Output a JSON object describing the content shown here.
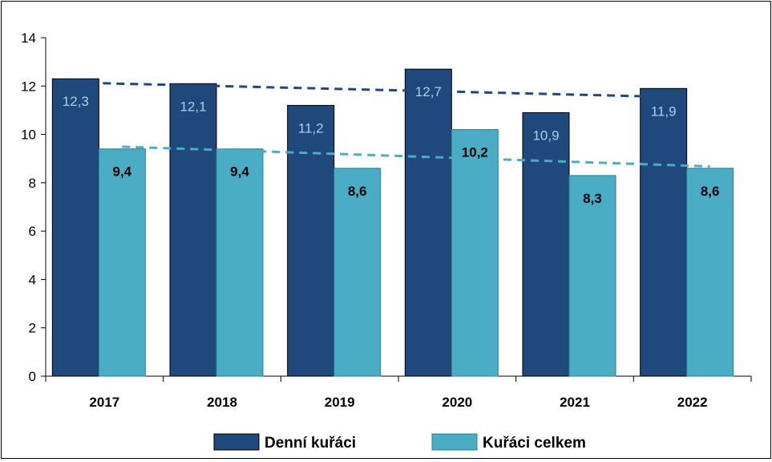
{
  "chart_data": {
    "type": "bar",
    "categories": [
      "2017",
      "2018",
      "2019",
      "2020",
      "2021",
      "2022"
    ],
    "series": [
      {
        "name": "Denní kuřáci",
        "values": [
          12.3,
          12.1,
          11.2,
          12.7,
          10.9,
          11.9
        ],
        "labels": [
          "12,3",
          "12,1",
          "11,2",
          "12,7",
          "10,9",
          "11,9"
        ],
        "color": "#1f497d",
        "trend_color": "#1f497d"
      },
      {
        "name": "Kuřáci celkem",
        "values": [
          9.4,
          9.4,
          8.6,
          10.2,
          8.3,
          8.6
        ],
        "labels": [
          "9,4",
          "9,4",
          "8,6",
          "10,2",
          "8,3",
          "8,6"
        ],
        "color": "#4bacc6",
        "trend_color": "#4bacc6"
      }
    ],
    "ylim": [
      0,
      14
    ],
    "yticks": [
      0,
      2,
      4,
      6,
      8,
      10,
      12,
      14
    ],
    "trendlines": "linear dashed",
    "grid": false,
    "legend": "bottom"
  }
}
